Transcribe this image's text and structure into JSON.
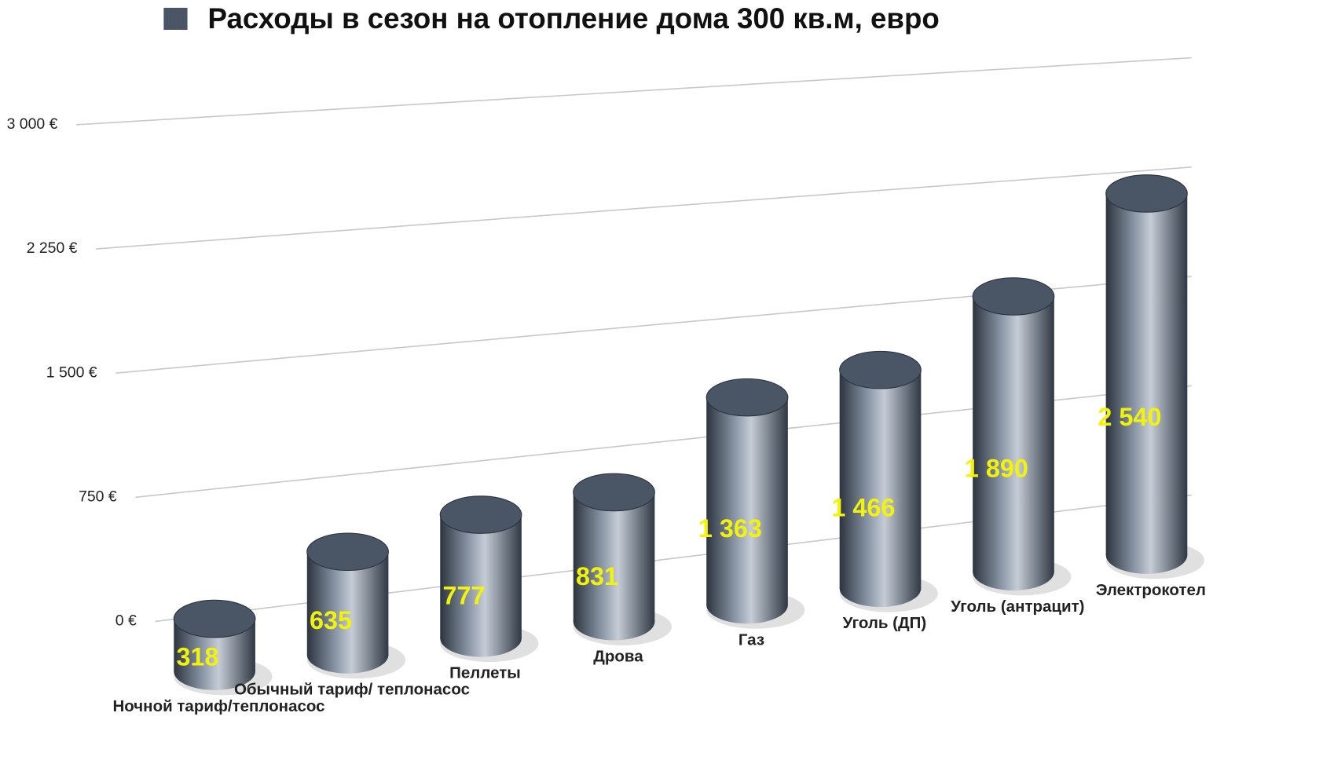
{
  "chart_data": {
    "type": "bar",
    "categories": [
      "Ночной тариф/теплонасос",
      "Обычный тариф/ теплонасос",
      "Пеллеты",
      "Дрова",
      "Газ",
      "Уголь (ДП)",
      "Уголь (антрацит)",
      "Электрокотел"
    ],
    "series": [
      {
        "name": "Расходы в сезон на отопление дома 300 кв.м, евро",
        "color": "#4a5566",
        "values": [
          318,
          635,
          777,
          831,
          1363,
          1466,
          1890,
          2540
        ],
        "value_labels": [
          "318",
          "635",
          "777",
          "831",
          "1 363",
          "1 466",
          "1 890",
          "2 540"
        ]
      }
    ],
    "ylim": [
      0,
      3000
    ],
    "yticks": [
      {
        "value": 0,
        "label": "0 €"
      },
      {
        "value": 750,
        "label": "750 €"
      },
      {
        "value": 1500,
        "label": "1 500 €"
      },
      {
        "value": 2250,
        "label": "2 250 €"
      },
      {
        "value": 3000,
        "label": "3 000 €"
      }
    ],
    "grid": true
  }
}
